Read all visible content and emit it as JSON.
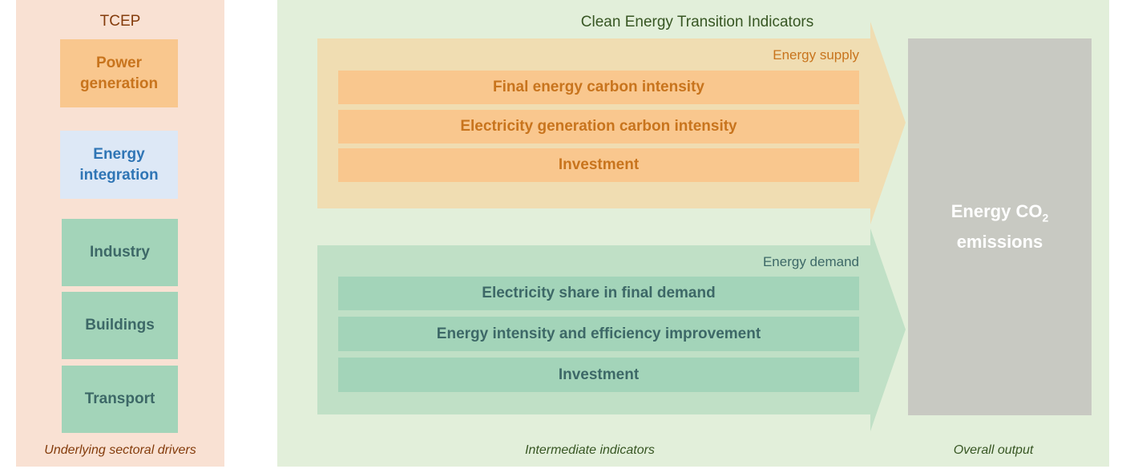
{
  "tcep": {
    "title": "TCEP",
    "boxes": [
      {
        "label": "Power\ngeneration",
        "color": "#c8741d",
        "bg": "#f9c78e"
      },
      {
        "label": "Energy\nintegration",
        "color": "#2f75b5",
        "bg": "#dde8f6"
      },
      {
        "label": "Industry",
        "color": "#3d6867",
        "bg": "#a3d4b9"
      },
      {
        "label": "Buildings",
        "color": "#3d6867",
        "bg": "#a3d4b9"
      },
      {
        "label": "Transport",
        "color": "#3d6867",
        "bg": "#a3d4b9"
      }
    ],
    "caption": "Underlying sectoral drivers"
  },
  "ceti": {
    "title": "Clean Energy Transition Indicators",
    "caption": "Intermediate indicators",
    "supply": {
      "label": "Energy supply",
      "indicators": [
        "Final energy carbon intensity",
        "Electricity generation carbon intensity",
        "Investment"
      ]
    },
    "demand": {
      "label": "Energy demand",
      "indicators": [
        "Electricity share in final demand",
        "Energy intensity and efficiency improvement",
        "Investment"
      ]
    }
  },
  "output": {
    "title_main": "Energy CO",
    "title_sub": "2",
    "title_line2": "emissions",
    "caption": "Overall output"
  },
  "colors": {
    "left_panel_bg": "#f9e1d3",
    "main_panel_bg": "#e2efda",
    "supply_arrow": "#f0ddb2",
    "demand_arrow": "#c0e0c6",
    "title_green": "#375623",
    "tcep_title": "#843c0c",
    "supply_text": "#c8741d",
    "demand_text": "#3d6867",
    "output_bg": "#c8c9c2"
  }
}
